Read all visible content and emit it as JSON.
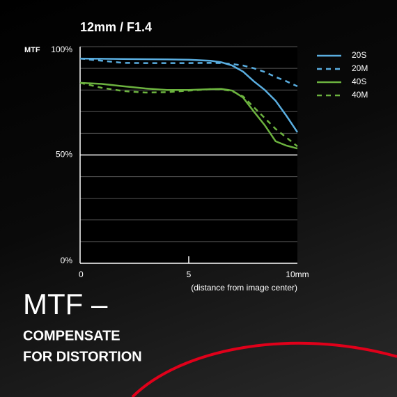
{
  "chart_data": {
    "type": "line",
    "title": "12mm / F1.4",
    "ylabel": "MTF",
    "xlabel": "(distance from image center)",
    "x": [
      0,
      1,
      2,
      3,
      4,
      5,
      6,
      6.5,
      7,
      7.5,
      8,
      8.5,
      9,
      9.5,
      10
    ],
    "series": [
      {
        "name": "20S",
        "color": "#5aaee0",
        "dash": false,
        "values": [
          94.5,
          94.4,
          94.3,
          94.2,
          94.1,
          94,
          93.5,
          92.8,
          91.3,
          88.5,
          84,
          80,
          75,
          68,
          60.5
        ]
      },
      {
        "name": "20M",
        "color": "#5aaee0",
        "dash": true,
        "values": [
          94.5,
          93.5,
          92.5,
          92.4,
          92.4,
          92.4,
          92.5,
          92.4,
          92,
          91.3,
          90,
          88.3,
          86,
          84,
          81.7
        ]
      },
      {
        "name": "40S",
        "color": "#6cb33f",
        "dash": false,
        "values": [
          83.3,
          82.8,
          81.7,
          80.7,
          80,
          80,
          80.4,
          80.5,
          79.7,
          76.5,
          70,
          63.7,
          56.3,
          54.3,
          53
        ]
      },
      {
        "name": "40M",
        "color": "#6cb33f",
        "dash": true,
        "values": [
          83.3,
          81,
          79.5,
          78.8,
          79,
          79.7,
          80.4,
          80.3,
          79.5,
          77,
          72,
          67,
          62,
          58,
          54
        ]
      }
    ],
    "xlim": [
      0,
      10
    ],
    "ylim": [
      0,
      100
    ],
    "xticks": [
      0,
      5,
      {
        "value": 10,
        "label": "10mm"
      }
    ],
    "yticks": [
      {
        "value": 0,
        "label": "0%"
      },
      {
        "value": 50,
        "label": "50%"
      },
      {
        "value": 100,
        "label": "100%"
      }
    ],
    "ygrid": [
      10,
      20,
      30,
      40,
      50,
      60,
      70,
      80,
      90,
      100
    ],
    "legend": "right"
  },
  "headline": {
    "title": "MTF –",
    "lines": [
      "COMPENSATE",
      "FOR DISTORTION"
    ]
  }
}
